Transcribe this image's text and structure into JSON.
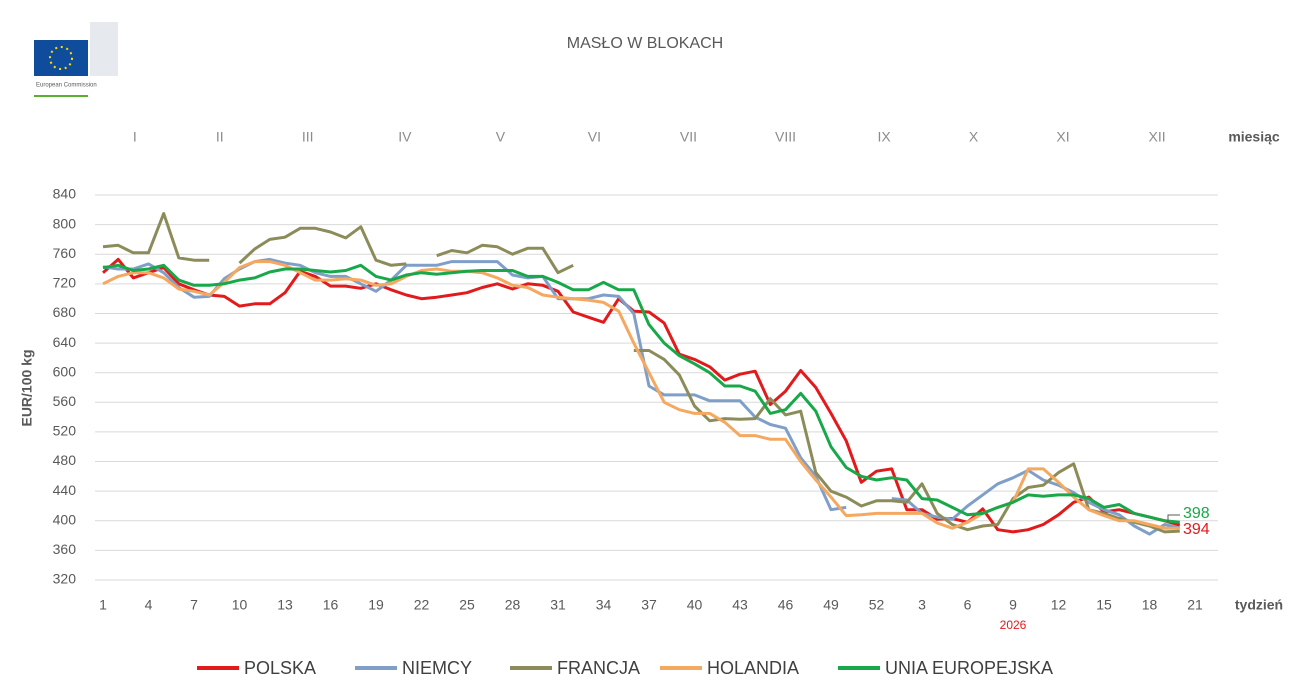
{
  "logo": "European Commission",
  "chart_data": {
    "type": "line",
    "title": "MASŁO W BLOKACH",
    "ylabel": "EUR/100 kg",
    "xlabel": "tydzień",
    "month_axis_label": "miesiąc",
    "months": [
      "I",
      "II",
      "III",
      "IV",
      "V",
      "VI",
      "VII",
      "VIII",
      "IX",
      "X",
      "XI",
      "XII"
    ],
    "year_annotation": {
      "text": "2026",
      "color": "#e31a1c"
    },
    "categories": [
      1,
      null,
      null,
      4,
      null,
      null,
      7,
      null,
      null,
      10,
      null,
      null,
      13,
      null,
      null,
      16,
      null,
      null,
      19,
      null,
      null,
      22,
      null,
      null,
      25,
      null,
      null,
      28,
      null,
      null,
      31,
      null,
      null,
      34,
      null,
      null,
      37,
      null,
      null,
      40,
      null,
      null,
      43,
      null,
      null,
      46,
      null,
      null,
      49,
      null,
      null,
      52,
      null,
      null,
      3,
      null,
      null,
      6,
      null,
      null,
      9,
      null,
      null,
      12,
      null,
      null,
      15,
      null,
      null,
      18,
      null,
      null,
      21
    ],
    "ylim": [
      320,
      840
    ],
    "yticks": [
      320,
      360,
      400,
      440,
      480,
      520,
      560,
      600,
      640,
      680,
      720,
      760,
      800,
      840
    ],
    "grid": true,
    "legend": "bottom",
    "series": [
      {
        "name": "POLSKA",
        "color": "#e31a1c",
        "values": [
          735,
          753,
          728,
          735,
          742,
          720,
          712,
          705,
          703,
          690,
          693,
          693,
          708,
          737,
          730,
          717,
          717,
          714,
          720,
          712,
          705,
          700,
          702,
          705,
          708,
          715,
          720,
          713,
          720,
          718,
          710,
          682,
          675,
          668,
          700,
          683,
          682,
          667,
          625,
          618,
          608,
          590,
          598,
          602,
          557,
          575,
          603,
          580,
          545,
          508,
          452,
          467,
          470,
          415,
          415,
          402,
          403,
          398,
          416,
          388,
          385,
          388,
          395,
          408,
          425,
          432,
          412,
          415,
          410,
          405,
          400,
          394,
          null
        ]
      },
      {
        "name": "NIEMCY",
        "color": "#7f9fc9",
        "values": [
          743,
          740,
          740,
          747,
          735,
          715,
          702,
          703,
          727,
          740,
          750,
          753,
          748,
          745,
          735,
          730,
          730,
          720,
          710,
          725,
          745,
          745,
          745,
          750,
          750,
          750,
          750,
          732,
          728,
          730,
          700,
          700,
          700,
          705,
          703,
          680,
          582,
          570,
          570,
          570,
          562,
          562,
          562,
          540,
          530,
          525,
          485,
          460,
          415,
          418,
          null,
          null,
          430,
          428,
          410,
          405,
          402,
          420,
          435,
          450,
          458,
          468,
          455,
          448,
          438,
          425,
          415,
          408,
          393,
          382,
          395,
          390,
          null
        ]
      },
      {
        "name": "FRANCJA",
        "color": "#8c8c5a",
        "values": [
          770,
          772,
          762,
          762,
          815,
          755,
          752,
          752,
          null,
          748,
          767,
          780,
          783,
          795,
          795,
          790,
          782,
          797,
          752,
          745,
          747,
          null,
          758,
          765,
          762,
          772,
          770,
          760,
          768,
          768,
          735,
          745,
          null,
          null,
          null,
          630,
          630,
          618,
          597,
          555,
          535,
          538,
          537,
          538,
          565,
          543,
          548,
          465,
          440,
          432,
          420,
          427,
          427,
          425,
          450,
          410,
          395,
          388,
          393,
          395,
          430,
          445,
          448,
          465,
          477,
          415,
          410,
          403,
          398,
          393,
          385,
          386,
          null
        ]
      },
      {
        "name": "HOLANDIA",
        "color": "#f4a860",
        "values": [
          720,
          730,
          735,
          735,
          728,
          713,
          710,
          705,
          722,
          742,
          750,
          750,
          745,
          735,
          725,
          725,
          727,
          725,
          718,
          720,
          730,
          738,
          740,
          737,
          737,
          735,
          728,
          718,
          715,
          705,
          702,
          700,
          698,
          695,
          683,
          640,
          600,
          560,
          550,
          545,
          545,
          533,
          515,
          515,
          510,
          510,
          480,
          455,
          432,
          407,
          408,
          410,
          410,
          410,
          410,
          397,
          390,
          398,
          410,
          418,
          425,
          470,
          470,
          452,
          432,
          415,
          407,
          400,
          400,
          395,
          390,
          390,
          null
        ]
      },
      {
        "name": "UNIA EUROPEJSKA",
        "color": "#18a84a",
        "values": [
          742,
          745,
          738,
          740,
          745,
          725,
          718,
          718,
          720,
          725,
          728,
          736,
          740,
          740,
          738,
          736,
          738,
          745,
          730,
          725,
          732,
          735,
          733,
          735,
          737,
          738,
          738,
          738,
          730,
          730,
          722,
          712,
          712,
          722,
          712,
          712,
          665,
          640,
          623,
          612,
          600,
          582,
          582,
          575,
          545,
          550,
          572,
          548,
          500,
          472,
          460,
          455,
          458,
          455,
          430,
          428,
          418,
          408,
          410,
          418,
          425,
          435,
          433,
          435,
          435,
          430,
          418,
          422,
          410,
          405,
          400,
          398,
          null
        ]
      }
    ],
    "annotations": [
      {
        "text": "398",
        "color": "#18a84a"
      },
      {
        "text": "394",
        "color": "#e31a1c"
      }
    ]
  }
}
